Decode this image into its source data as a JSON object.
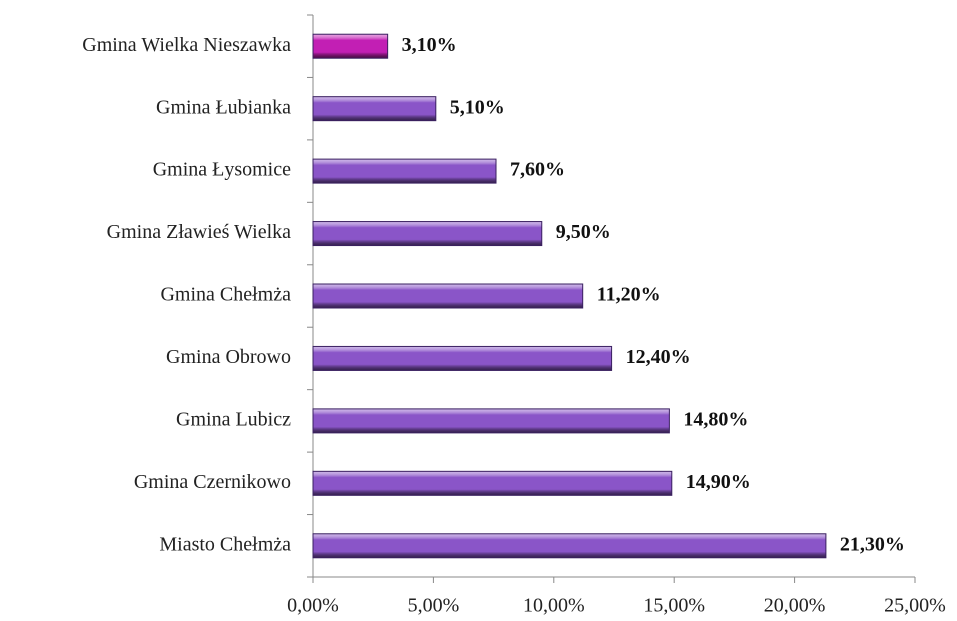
{
  "chart_data": {
    "type": "hbar",
    "categories": [
      "Gmina Wielka Nieszawka",
      "Gmina Łubianka",
      "Gmina Łysomice",
      "Gmina Zławieś Wielka",
      "Gmina Chełmża",
      "Gmina Obrowo",
      "Gmina Lubicz",
      "Gmina Czernikowo",
      "Miasto Chełmża"
    ],
    "values": [
      3.1,
      5.1,
      7.6,
      9.5,
      11.2,
      12.4,
      14.8,
      14.9,
      21.3
    ],
    "value_labels": [
      "3,10%",
      "5,10%",
      "7,60%",
      "9,50%",
      "11,20%",
      "12,40%",
      "14,80%",
      "14,90%",
      "21,30%"
    ],
    "colors": [
      "#c21fb4",
      "#8a55c8",
      "#8a55c8",
      "#8a55c8",
      "#8a55c8",
      "#8a55c8",
      "#8a55c8",
      "#8a55c8",
      "#8a55c8"
    ],
    "xlim": [
      0,
      25
    ],
    "xticks": [
      {
        "value": 0,
        "label": "0,00%"
      },
      {
        "value": 5,
        "label": "5,00%"
      },
      {
        "value": 10,
        "label": "10,00%"
      },
      {
        "value": 15,
        "label": "15,00%"
      },
      {
        "value": 20,
        "label": "20,00%"
      },
      {
        "value": 25,
        "label": "25,00%"
      }
    ]
  }
}
